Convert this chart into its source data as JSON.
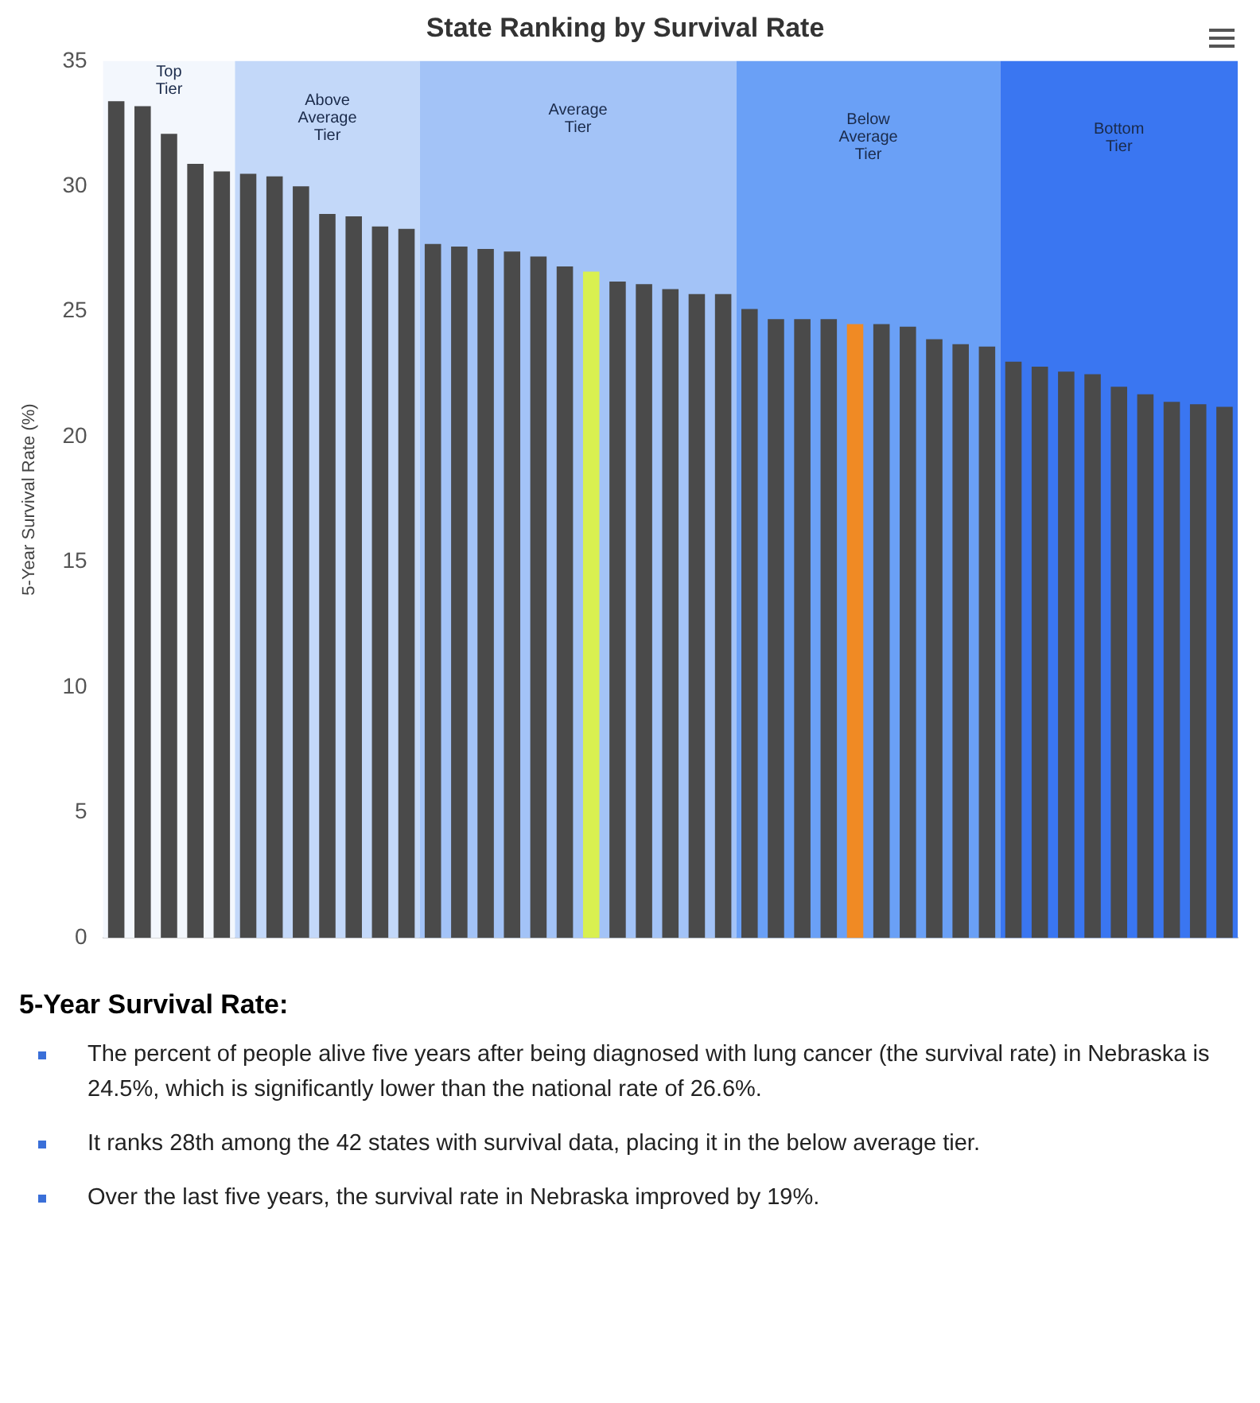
{
  "chart_data": {
    "type": "bar",
    "title": "State Ranking by Survival Rate",
    "ylabel": "5-Year Survival Rate (%)",
    "categories": [
      null,
      null,
      null,
      null,
      null,
      null,
      null,
      null,
      null,
      null,
      null,
      null,
      null,
      null,
      null,
      null,
      null,
      null,
      null,
      null,
      null,
      null,
      null,
      null,
      null,
      null,
      null,
      null,
      null,
      null,
      null,
      null,
      null,
      null,
      null,
      null,
      null,
      null,
      null,
      null,
      null,
      null,
      null
    ],
    "values": [
      33.4,
      33.2,
      32.1,
      30.9,
      30.6,
      30.5,
      30.4,
      30.0,
      28.9,
      28.8,
      28.4,
      28.3,
      27.7,
      27.6,
      27.5,
      27.4,
      27.2,
      26.8,
      26.6,
      26.2,
      26.1,
      25.9,
      25.7,
      25.7,
      25.1,
      24.7,
      24.7,
      24.7,
      24.5,
      24.5,
      24.4,
      23.9,
      23.7,
      23.6,
      23.0,
      22.8,
      22.6,
      22.5,
      22.0,
      21.7,
      21.4,
      21.3,
      21.2
    ],
    "colors": [
      "#4a4a4a",
      "#4a4a4a",
      "#4a4a4a",
      "#4a4a4a",
      "#4a4a4a",
      "#4a4a4a",
      "#4a4a4a",
      "#4a4a4a",
      "#4a4a4a",
      "#4a4a4a",
      "#4a4a4a",
      "#4a4a4a",
      "#4a4a4a",
      "#4a4a4a",
      "#4a4a4a",
      "#4a4a4a",
      "#4a4a4a",
      "#4a4a4a",
      "#d9f050",
      "#4a4a4a",
      "#4a4a4a",
      "#4a4a4a",
      "#4a4a4a",
      "#4a4a4a",
      "#4a4a4a",
      "#4a4a4a",
      "#4a4a4a",
      "#4a4a4a",
      "#f08a24",
      "#4a4a4a",
      "#4a4a4a",
      "#4a4a4a",
      "#4a4a4a",
      "#4a4a4a",
      "#4a4a4a",
      "#4a4a4a",
      "#4a4a4a",
      "#4a4a4a",
      "#4a4a4a",
      "#4a4a4a",
      "#4a4a4a",
      "#4a4a4a",
      "#4a4a4a"
    ],
    "ylim": [
      0,
      35
    ],
    "yticks": [
      0,
      5,
      10,
      15,
      20,
      25,
      30,
      35
    ],
    "tick_labels": "y",
    "grid": false,
    "legend": false,
    "annotations": [
      "Top Tier",
      "Above Average Tier",
      "Average Tier",
      "Below Average Tier",
      "Bottom Tier",
      "5-Year Survival Rate:",
      "The percent of people alive five years after being diagnosed with lung cancer (the survival rate) in Nebraska is 24.5%, which is significantly lower than the national rate of 26.6%.",
      "It ranks 28th among the 42 states with survival data, placing it in the below average tier.",
      "Over the last five years, the survival rate in Nebraska improved by 19%."
    ]
  }
}
